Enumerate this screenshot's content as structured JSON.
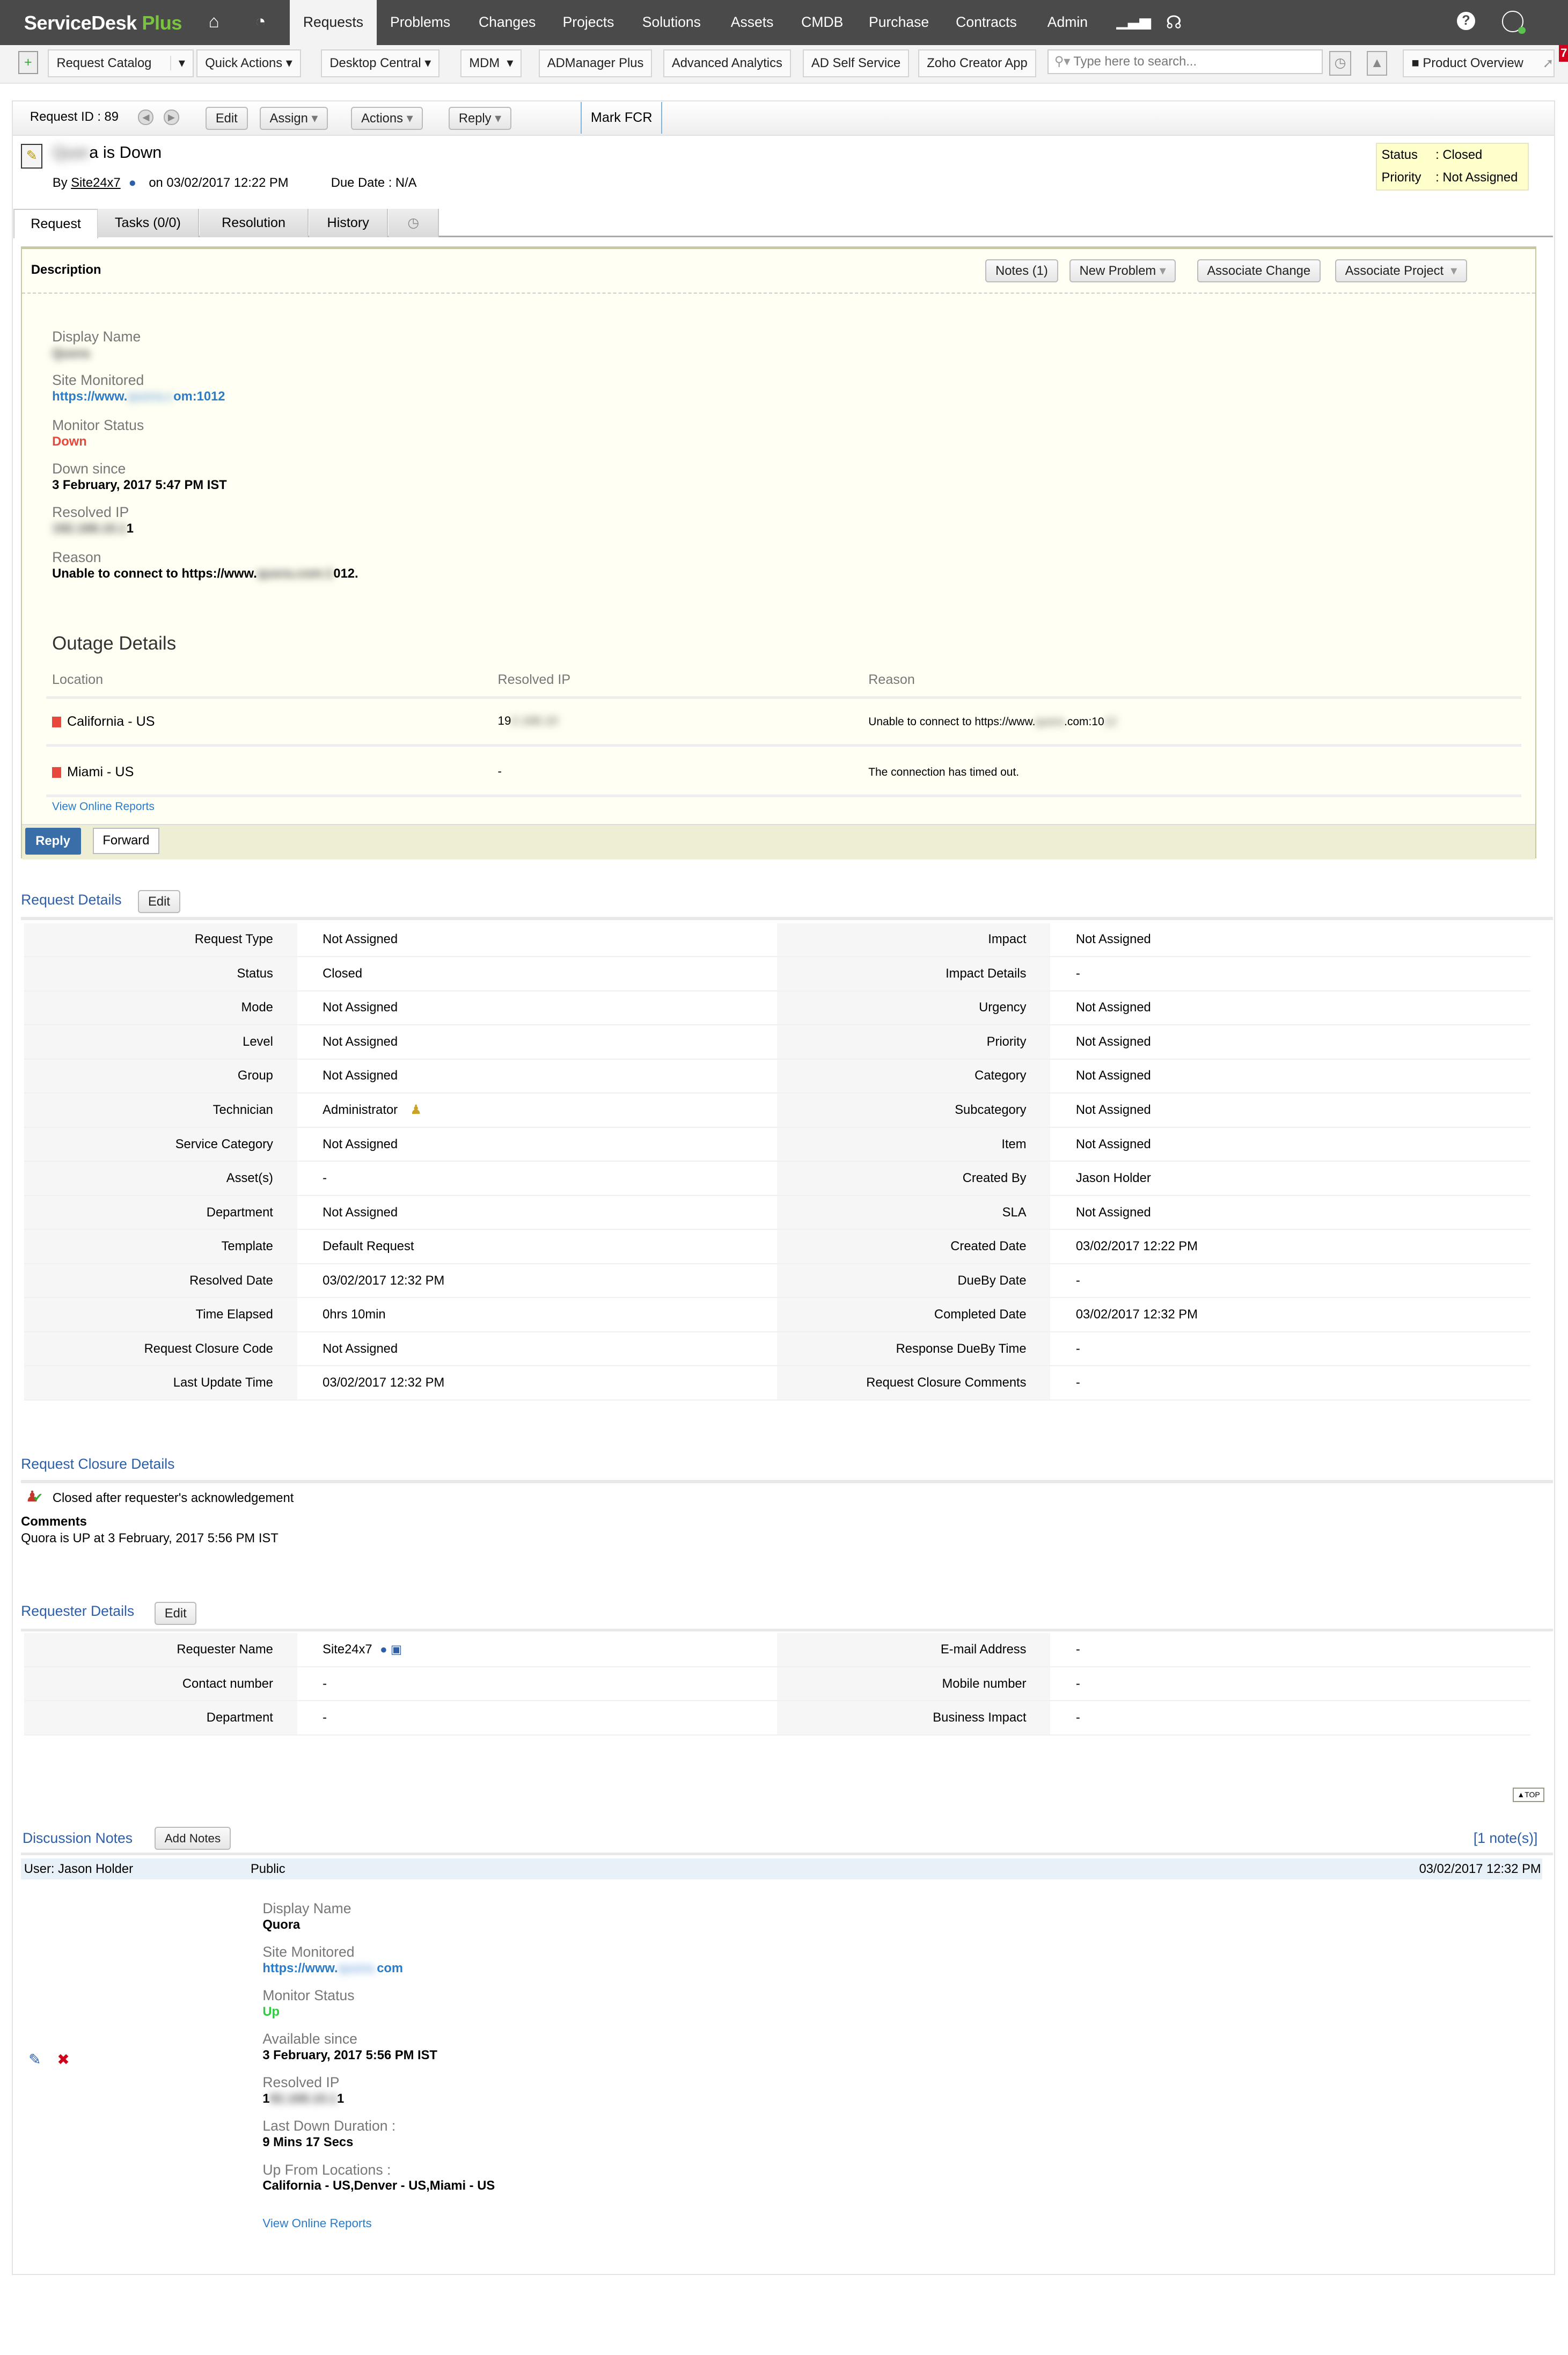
{
  "nav": {
    "logo_main": "ServiceDesk",
    "logo_accent": "Plus",
    "items": [
      "Requests",
      "Problems",
      "Changes",
      "Projects",
      "Solutions",
      "Assets",
      "CMDB",
      "Purchase",
      "Contracts",
      "Admin"
    ],
    "active": "Requests"
  },
  "toolbar": {
    "buttons": [
      "Request Catalog",
      "Quick Actions",
      "Desktop Central",
      "MDM",
      "ADManager Plus",
      "Advanced Analytics",
      "AD Self Service",
      "Zoho Creator App"
    ],
    "search_placeholder": "Type here to search...",
    "product_overview": "Product Overview",
    "badge_count": "7"
  },
  "request_bar": {
    "request_id": "Request ID : 89",
    "edit": "Edit",
    "assign": "Assign",
    "actions": "Actions",
    "reply": "Reply",
    "mark_fcr": "Mark FCR"
  },
  "header": {
    "title_suffix": "a is Down",
    "by_label": "By",
    "requester": "Site24x7",
    "on_label": "on",
    "created": "03/02/2017 12:22 PM",
    "due_date": "Due Date : N/A",
    "status_label": "Status",
    "status": ": Closed",
    "priority_label": "Priority",
    "priority": ": Not Assigned"
  },
  "tabs": [
    "Request",
    "Tasks (0/0)",
    "Resolution",
    "History"
  ],
  "description": {
    "title": "Description",
    "buttons": {
      "notes": "Notes (1)",
      "new_problem": "New Problem",
      "associate_change": "Associate Change",
      "associate_project": "Associate Project"
    },
    "fields": {
      "display_name_label": "Display Name",
      "site_label": "Site Monitored",
      "site_prefix": "https://www.",
      "site_suffix": "om:1012",
      "status_label": "Monitor Status",
      "status": "Down",
      "down_since_label": "Down since",
      "down_since": "3 February, 2017 5:47 PM IST",
      "ip_label": "Resolved IP",
      "ip_suffix": "1",
      "reason_label": "Reason",
      "reason_prefix": "Unable to connect to https://www.",
      "reason_suffix": "012."
    },
    "outage": {
      "title": "Outage Details",
      "headers": [
        "Location",
        "Resolved IP",
        "Reason"
      ],
      "rows": [
        {
          "location": "California - US",
          "ip": "19",
          "reason": "Unable to connect to https://www.",
          "reason_suffix": ".com:10"
        },
        {
          "location": "Miami - US",
          "ip": "-",
          "reason": "The connection has timed out.",
          "reason_suffix": ""
        }
      ],
      "link": "View Online Reports"
    },
    "reply": "Reply",
    "forward": "Forward"
  },
  "request_details": {
    "title": "Request Details",
    "edit": "Edit",
    "rows": [
      [
        [
          "Request Type",
          "Not Assigned"
        ],
        [
          "Impact",
          "Not Assigned"
        ]
      ],
      [
        [
          "Status",
          "Closed"
        ],
        [
          "Impact Details",
          "-"
        ]
      ],
      [
        [
          "Mode",
          "Not Assigned"
        ],
        [
          "Urgency",
          "Not Assigned"
        ]
      ],
      [
        [
          "Level",
          "Not Assigned"
        ],
        [
          "Priority",
          "Not Assigned"
        ]
      ],
      [
        [
          "Group",
          "Not Assigned"
        ],
        [
          "Category",
          "Not Assigned"
        ]
      ],
      [
        [
          "Technician",
          "Administrator"
        ],
        [
          "Subcategory",
          "Not Assigned"
        ]
      ],
      [
        [
          "Service Category",
          "Not Assigned"
        ],
        [
          "Item",
          "Not Assigned"
        ]
      ],
      [
        [
          "Asset(s)",
          "-"
        ],
        [
          "Created By",
          "Jason Holder"
        ]
      ],
      [
        [
          "Department",
          "Not Assigned"
        ],
        [
          "SLA",
          "Not Assigned"
        ]
      ],
      [
        [
          "Template",
          "Default Request"
        ],
        [
          "Created Date",
          "03/02/2017 12:22 PM"
        ]
      ],
      [
        [
          "Resolved Date",
          "03/02/2017 12:32 PM"
        ],
        [
          "DueBy Date",
          "-"
        ]
      ],
      [
        [
          "Time Elapsed",
          "0hrs 10min"
        ],
        [
          "Completed Date",
          "03/02/2017 12:32 PM"
        ]
      ],
      [
        [
          "Request Closure Code",
          "Not Assigned"
        ],
        [
          "Response DueBy Time",
          "-"
        ]
      ],
      [
        [
          "Last Update Time",
          "03/02/2017 12:32 PM"
        ],
        [
          "Request Closure Comments",
          "-"
        ]
      ]
    ]
  },
  "closure": {
    "title": "Request Closure Details",
    "status": "Closed after requester's acknowledgement",
    "comments_label": "Comments",
    "comments": "Quora is UP at 3 February, 2017 5:56 PM IST"
  },
  "requester": {
    "title": "Requester Details",
    "edit": "Edit",
    "rows": [
      [
        [
          "Requester Name",
          "Site24x7"
        ],
        [
          "E-mail Address",
          "-"
        ]
      ],
      [
        [
          "Contact number",
          "-"
        ],
        [
          "Mobile number",
          "-"
        ]
      ],
      [
        [
          "Department",
          "-"
        ],
        [
          "Business Impact",
          "-"
        ]
      ]
    ]
  },
  "top_label": "TOP",
  "notes": {
    "title": "Discussion Notes",
    "add": "Add Notes",
    "count": "[1 note(s)]",
    "user": "User: Jason Holder",
    "visibility": "Public",
    "date": "03/02/2017 12:32 PM",
    "fields": {
      "display_name_label": "Display Name",
      "display_name": "Quora",
      "site_label": "Site Monitored",
      "site_prefix": "https://www.",
      "site_suffix": "com",
      "status_label": "Monitor Status",
      "status": "Up",
      "available_label": "Available since",
      "available": "3 February, 2017 5:56 PM IST",
      "ip_label": "Resolved IP",
      "ip_prefix": "1",
      "ip_suffix": "1",
      "duration_label": "Last Down Duration :",
      "duration": "9 Mins 17 Secs",
      "locations_label": "Up From Locations :",
      "locations": "California - US,Denver - US,Miami - US",
      "link": "View Online Reports"
    }
  },
  "colors": {
    "nav_bg": "#4a4a4a",
    "accent_green": "#7cc242",
    "link_blue": "#2a7bc8",
    "section_blue": "#2d5ea8",
    "down_red": "#e8483b",
    "up_green": "#2ecc40",
    "desc_bg": "#fffff3"
  }
}
